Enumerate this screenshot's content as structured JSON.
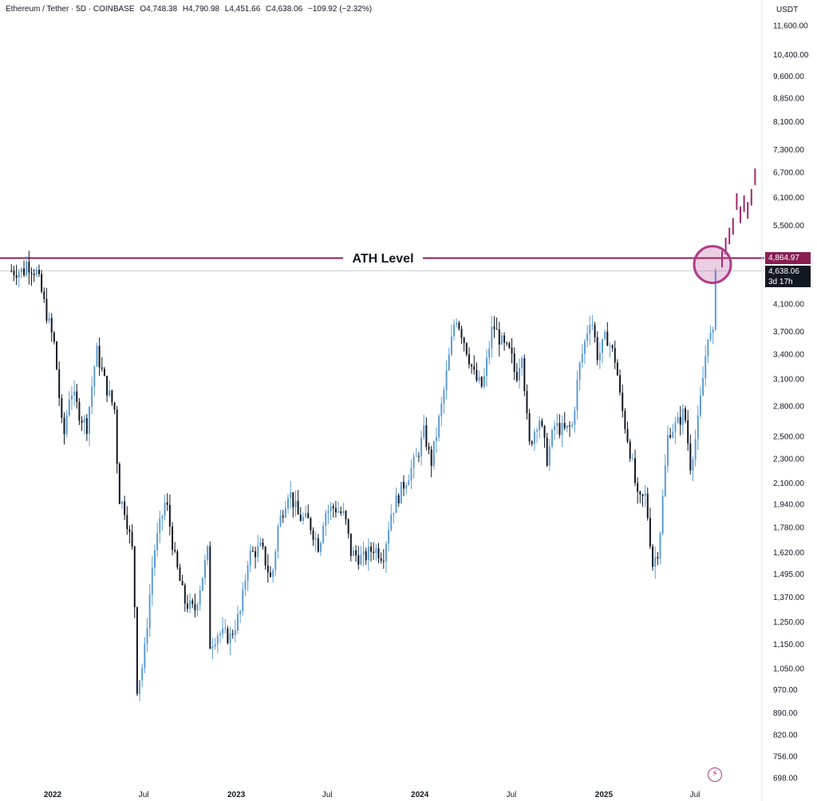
{
  "header": {
    "symbol": "Ethereum / Tether · 5D · COINBASE",
    "open": "O4,748.38",
    "high": "H4,790.98",
    "low": "L4,451.66",
    "close": "C4,638.06",
    "change": "−109.92 (−2.32%)"
  },
  "chart_data": {
    "type": "candlestick",
    "log_scale": true,
    "grid": false,
    "unit": "USDT",
    "y_ticks": [
      11600,
      10400,
      9600,
      8850,
      8100,
      7300,
      6700,
      6100,
      5500,
      4100,
      3700,
      3400,
      3100,
      2800,
      2500,
      2300,
      2100,
      1940,
      1780,
      1620,
      1495,
      1370,
      1250,
      1150,
      1050,
      970,
      890,
      820,
      756,
      698
    ],
    "y_tick_labels": [
      "11,600.00",
      "10,400.00",
      "9,600.00",
      "8,850.00",
      "8,100.00",
      "7,300.00",
      "6,700.00",
      "6,100.00",
      "5,500.00",
      "4,100.00",
      "3,700.00",
      "3,400.00",
      "3,100.00",
      "2,800.00",
      "2,500.00",
      "2,300.00",
      "2,100.00",
      "1,940.00",
      "1,780.00",
      "1,620.00",
      "1,495.00",
      "1,370.00",
      "1,250.00",
      "1,150.00",
      "1,050.00",
      "970.00",
      "890.00",
      "820.00",
      "756.00",
      "698.00"
    ],
    "x_labels": [
      "2022",
      "Jul",
      "2023",
      "Jul",
      "2024",
      "Jul",
      "2025",
      "Jul"
    ],
    "x_label_dates": [
      "2022-01-01",
      "2022-07-01",
      "2023-01-01",
      "2023-07-01",
      "2024-01-01",
      "2024-07-01",
      "2025-01-01",
      "2025-07-01"
    ],
    "series": [
      {
        "points": [
          [
            "2021-11-10",
            4780
          ],
          [
            "2021-12-01",
            4600
          ],
          [
            "2021-12-20",
            3950
          ],
          [
            "2022-01-05",
            3500
          ],
          [
            "2022-01-22",
            2450
          ],
          [
            "2022-02-05",
            3000
          ],
          [
            "2022-02-25",
            2700
          ],
          [
            "2022-03-10",
            2600
          ],
          [
            "2022-03-29",
            3450
          ],
          [
            "2022-04-15",
            3050
          ],
          [
            "2022-05-05",
            2750
          ],
          [
            "2022-05-12",
            2000
          ],
          [
            "2022-05-25",
            1900
          ],
          [
            "2022-06-10",
            1600
          ],
          [
            "2022-06-18",
            980
          ],
          [
            "2022-07-01",
            1080
          ],
          [
            "2022-07-20",
            1600
          ],
          [
            "2022-08-14",
            1980
          ],
          [
            "2022-09-01",
            1580
          ],
          [
            "2022-09-20",
            1350
          ],
          [
            "2022-10-10",
            1300
          ],
          [
            "2022-11-05",
            1620
          ],
          [
            "2022-11-10",
            1150
          ],
          [
            "2022-11-25",
            1200
          ],
          [
            "2022-12-20",
            1180
          ],
          [
            "2023-01-10",
            1300
          ],
          [
            "2023-01-25",
            1600
          ],
          [
            "2023-02-20",
            1650
          ],
          [
            "2023-03-12",
            1450
          ],
          [
            "2023-03-25",
            1780
          ],
          [
            "2023-04-15",
            2050
          ],
          [
            "2023-05-05",
            1850
          ],
          [
            "2023-05-25",
            1820
          ],
          [
            "2023-06-15",
            1650
          ],
          [
            "2023-06-25",
            1880
          ],
          [
            "2023-07-15",
            1920
          ],
          [
            "2023-08-05",
            1850
          ],
          [
            "2023-08-17",
            1620
          ],
          [
            "2023-09-10",
            1580
          ],
          [
            "2023-10-01",
            1650
          ],
          [
            "2023-10-20",
            1600
          ],
          [
            "2023-11-05",
            1880
          ],
          [
            "2023-12-01",
            2100
          ],
          [
            "2023-12-25",
            2300
          ],
          [
            "2024-01-10",
            2550
          ],
          [
            "2024-01-23",
            2250
          ],
          [
            "2024-02-15",
            2850
          ],
          [
            "2024-03-12",
            3950
          ],
          [
            "2024-03-28",
            3600
          ],
          [
            "2024-04-20",
            3100
          ],
          [
            "2024-05-05",
            3000
          ],
          [
            "2024-05-25",
            3800
          ],
          [
            "2024-06-15",
            3500
          ],
          [
            "2024-06-30",
            3400
          ],
          [
            "2024-07-10",
            3100
          ],
          [
            "2024-07-22",
            3450
          ],
          [
            "2024-08-05",
            2400
          ],
          [
            "2024-08-25",
            2700
          ],
          [
            "2024-09-10",
            2300
          ],
          [
            "2024-09-25",
            2600
          ],
          [
            "2024-10-15",
            2550
          ],
          [
            "2024-10-30",
            2600
          ],
          [
            "2024-11-12",
            3200
          ],
          [
            "2024-12-06",
            3950
          ],
          [
            "2024-12-20",
            3350
          ],
          [
            "2025-01-06",
            3650
          ],
          [
            "2025-01-25",
            3300
          ],
          [
            "2025-02-03",
            2850
          ],
          [
            "2025-02-25",
            2300
          ],
          [
            "2025-03-10",
            1950
          ],
          [
            "2025-03-25",
            2000
          ],
          [
            "2025-04-08",
            1550
          ],
          [
            "2025-04-20",
            1650
          ],
          [
            "2025-05-09",
            2550
          ],
          [
            "2025-05-25",
            2600
          ],
          [
            "2025-06-10",
            2750
          ],
          [
            "2025-06-22",
            2250
          ],
          [
            "2025-07-05",
            2550
          ],
          [
            "2025-07-15",
            3000
          ],
          [
            "2025-07-28",
            3750
          ],
          [
            "2025-08-05",
            3500
          ],
          [
            "2025-08-13",
            4638.06
          ]
        ]
      }
    ],
    "projection": [
      5000,
      5250,
      5450,
      5650,
      6200,
      5900,
      6150,
      6000,
      6300,
      6800
    ],
    "annotations": [
      {
        "text": "ATH Level",
        "value": 4864.97,
        "value_label": "4,864.97"
      },
      {
        "text": "4,638.06",
        "subtext": "3d 17h",
        "value": 4638.06
      }
    ]
  },
  "colors": {
    "up": "#5b9bd5",
    "down": "#131722",
    "ath_line": "#8a1e54",
    "projection": "#a3286a",
    "circle": "#b03a8a"
  }
}
